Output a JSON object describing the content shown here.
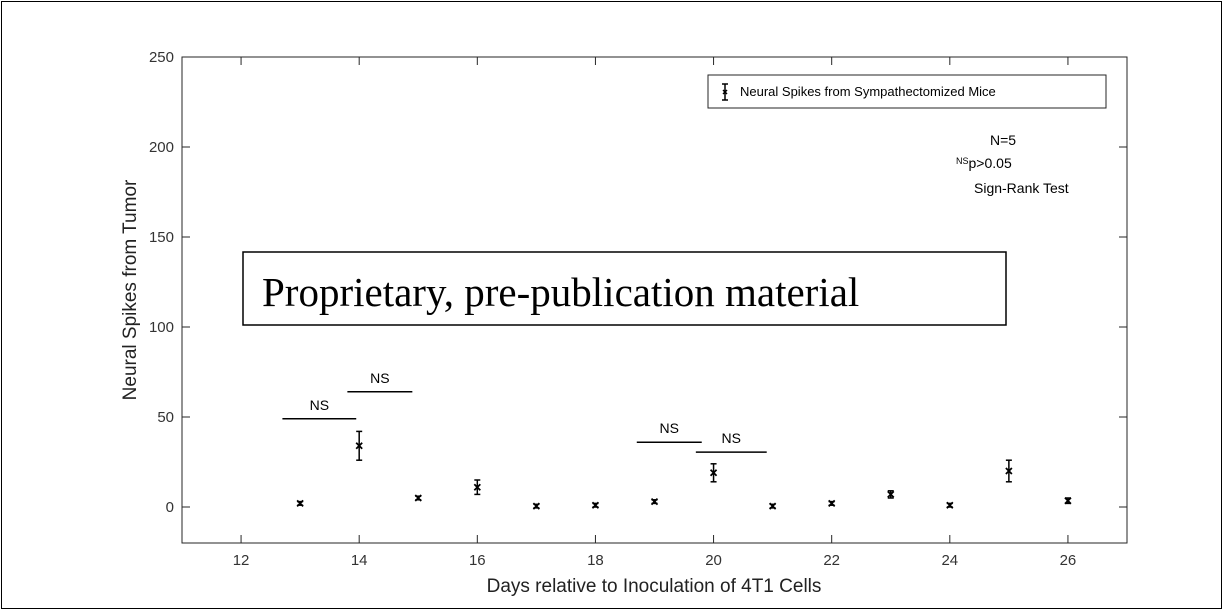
{
  "chart_data": {
    "type": "scatter",
    "title": "",
    "xlabel": "Days relative to Inoculation of 4T1 Cells",
    "ylabel": "Neural Spikes from Tumor",
    "xlim": [
      11,
      27
    ],
    "ylim": [
      -20,
      250
    ],
    "xticks": [
      12,
      14,
      16,
      18,
      20,
      22,
      24,
      26
    ],
    "yticks": [
      0,
      50,
      100,
      150,
      200,
      250
    ],
    "grid": false,
    "legend_position": "top-right",
    "series": [
      {
        "name": "Neural Spikes from Sympathectomized Mice",
        "marker": "x",
        "color": "#000000",
        "points": [
          {
            "x": 13,
            "y": 2,
            "err": 1
          },
          {
            "x": 14,
            "y": 34,
            "err": 8
          },
          {
            "x": 15,
            "y": 5,
            "err": 1
          },
          {
            "x": 16,
            "y": 11,
            "err": 4
          },
          {
            "x": 17,
            "y": 0.5,
            "err": 1
          },
          {
            "x": 18,
            "y": 1,
            "err": 1
          },
          {
            "x": 19,
            "y": 3,
            "err": 1
          },
          {
            "x": 20,
            "y": 19,
            "err": 5
          },
          {
            "x": 21,
            "y": 0.5,
            "err": 1
          },
          {
            "x": 22,
            "y": 2,
            "err": 1
          },
          {
            "x": 23,
            "y": 7,
            "err": 2
          },
          {
            "x": 24,
            "y": 1,
            "err": 1
          },
          {
            "x": 25,
            "y": 20,
            "err": 6
          },
          {
            "x": 26,
            "y": 3.5,
            "err": 1.5
          }
        ]
      }
    ],
    "significance_bars": [
      {
        "label": "NS",
        "x_start": 12.7,
        "x_end": 13.95,
        "y": 49
      },
      {
        "label": "NS",
        "x_start": 13.8,
        "x_end": 14.9,
        "y": 64
      },
      {
        "label": "NS",
        "x_start": 18.7,
        "x_end": 19.8,
        "y": 36
      },
      {
        "label": "NS",
        "x_start": 19.7,
        "x_end": 20.9,
        "y": 30.5
      }
    ],
    "annotations": {
      "n": "N=5",
      "ns_superscript": "NS",
      "pvalue": "p>0.05",
      "test": "Sign-Rank Test"
    }
  },
  "overlay": {
    "text": "Proprietary, pre-publication material"
  }
}
